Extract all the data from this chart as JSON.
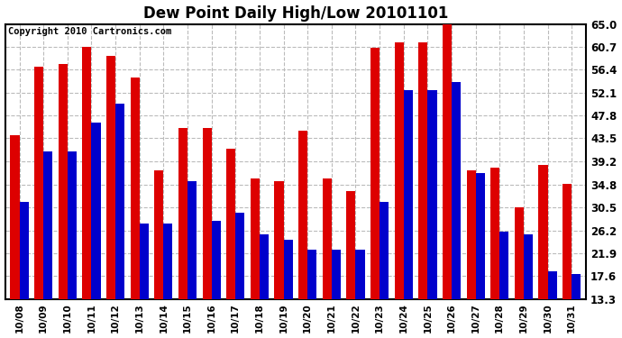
{
  "title": "Dew Point Daily High/Low 20101101",
  "copyright": "Copyright 2010 Cartronics.com",
  "dates": [
    "10/08",
    "10/09",
    "10/10",
    "10/11",
    "10/12",
    "10/13",
    "10/14",
    "10/15",
    "10/16",
    "10/17",
    "10/18",
    "10/19",
    "10/20",
    "10/21",
    "10/22",
    "10/23",
    "10/24",
    "10/25",
    "10/26",
    "10/27",
    "10/28",
    "10/29",
    "10/30",
    "10/31"
  ],
  "highs": [
    44.0,
    57.0,
    57.5,
    60.7,
    59.0,
    55.0,
    37.5,
    45.5,
    45.5,
    41.5,
    36.0,
    35.5,
    45.0,
    36.0,
    33.5,
    60.5,
    61.5,
    61.5,
    65.0,
    37.5,
    38.0,
    30.5,
    38.5,
    35.0
  ],
  "lows": [
    31.5,
    41.0,
    41.0,
    46.5,
    50.0,
    27.5,
    27.5,
    35.5,
    28.0,
    29.5,
    25.5,
    24.5,
    22.5,
    22.5,
    22.5,
    31.5,
    52.5,
    52.5,
    54.0,
    37.0,
    26.0,
    25.5,
    18.5,
    18.0
  ],
  "bar_color_high": "#dd0000",
  "bar_color_low": "#0000cc",
  "background_color": "#ffffff",
  "plot_bg_color": "#ffffff",
  "grid_color": "#bbbbbb",
  "yticks": [
    13.3,
    17.6,
    21.9,
    26.2,
    30.5,
    34.8,
    39.2,
    43.5,
    47.8,
    52.1,
    56.4,
    60.7,
    65.0
  ],
  "ymin": 13.3,
  "ymax": 65.0,
  "bar_width": 0.38,
  "title_fontsize": 12,
  "copyright_fontsize": 7.5,
  "tick_fontsize": 7.5,
  "ytick_fontsize": 8.5
}
